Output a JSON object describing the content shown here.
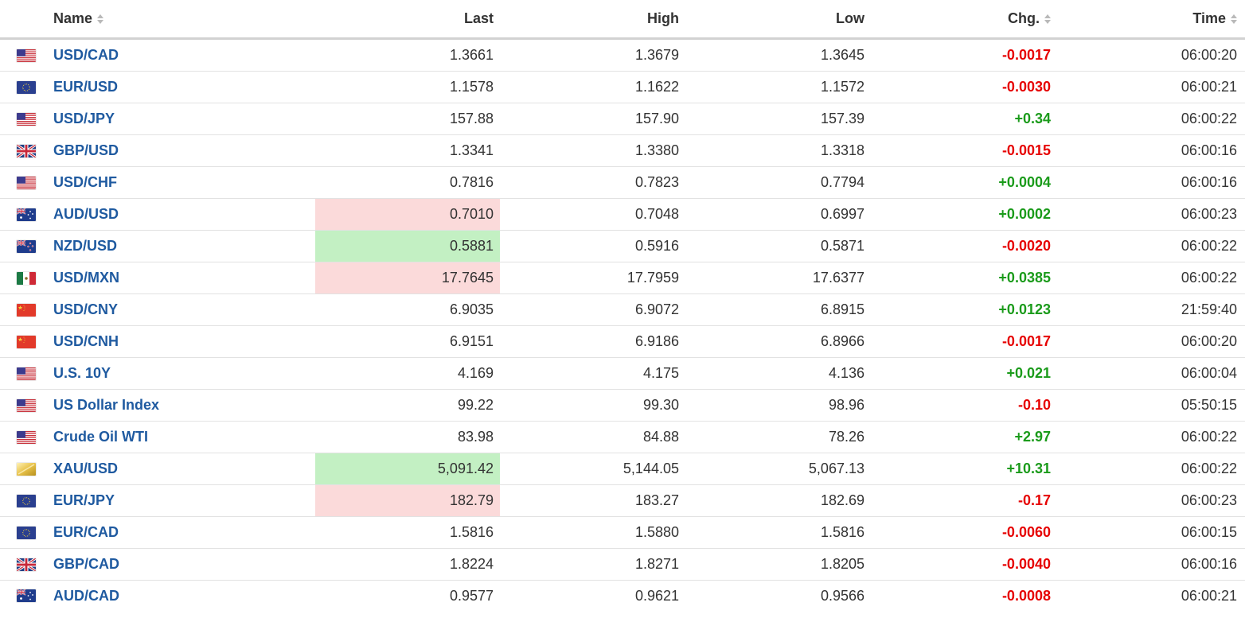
{
  "header": {
    "name": "Name",
    "last": "Last",
    "high": "High",
    "low": "Low",
    "chg": "Chg.",
    "time": "Time"
  },
  "colors": {
    "link": "#1f5aa0",
    "positive": "#1b9b1b",
    "negative": "#e60000",
    "flash_up": "#c3f0c3",
    "flash_down": "#fbdada"
  },
  "rows": [
    {
      "flag": "us-flag-icon",
      "name": "USD/CAD",
      "last": "1.3661",
      "high": "1.3679",
      "low": "1.3645",
      "chg": "-0.0017",
      "dir": "neg",
      "time": "06:00:20",
      "hl": ""
    },
    {
      "flag": "eu-flag-icon",
      "name": "EUR/USD",
      "last": "1.1578",
      "high": "1.1622",
      "low": "1.1572",
      "chg": "-0.0030",
      "dir": "neg",
      "time": "06:00:21",
      "hl": ""
    },
    {
      "flag": "us-flag-icon",
      "name": "USD/JPY",
      "last": "157.88",
      "high": "157.90",
      "low": "157.39",
      "chg": "+0.34",
      "dir": "pos",
      "time": "06:00:22",
      "hl": ""
    },
    {
      "flag": "uk-flag-icon",
      "name": "GBP/USD",
      "last": "1.3341",
      "high": "1.3380",
      "low": "1.3318",
      "chg": "-0.0015",
      "dir": "neg",
      "time": "06:00:16",
      "hl": ""
    },
    {
      "flag": "us-flag-icon",
      "name": "USD/CHF",
      "last": "0.7816",
      "high": "0.7823",
      "low": "0.7794",
      "chg": "+0.0004",
      "dir": "pos",
      "time": "06:00:16",
      "hl": ""
    },
    {
      "flag": "au-flag-icon",
      "name": "AUD/USD",
      "last": "0.7010",
      "high": "0.7048",
      "low": "0.6997",
      "chg": "+0.0002",
      "dir": "pos",
      "time": "06:00:23",
      "hl": "down"
    },
    {
      "flag": "nz-flag-icon",
      "name": "NZD/USD",
      "last": "0.5881",
      "high": "0.5916",
      "low": "0.5871",
      "chg": "-0.0020",
      "dir": "neg",
      "time": "06:00:22",
      "hl": "up"
    },
    {
      "flag": "mx-flag-icon",
      "name": "USD/MXN",
      "last": "17.7645",
      "high": "17.7959",
      "low": "17.6377",
      "chg": "+0.0385",
      "dir": "pos",
      "time": "06:00:22",
      "hl": "down"
    },
    {
      "flag": "cn-flag-icon",
      "name": "USD/CNY",
      "last": "6.9035",
      "high": "6.9072",
      "low": "6.8915",
      "chg": "+0.0123",
      "dir": "pos",
      "time": "21:59:40",
      "hl": ""
    },
    {
      "flag": "cn-flag-icon",
      "name": "USD/CNH",
      "last": "6.9151",
      "high": "6.9186",
      "low": "6.8966",
      "chg": "-0.0017",
      "dir": "neg",
      "time": "06:00:20",
      "hl": ""
    },
    {
      "flag": "us-flag-icon",
      "name": "U.S. 10Y",
      "last": "4.169",
      "high": "4.175",
      "low": "4.136",
      "chg": "+0.021",
      "dir": "pos",
      "time": "06:00:04",
      "hl": ""
    },
    {
      "flag": "us-flag-icon",
      "name": "US Dollar Index",
      "last": "99.22",
      "high": "99.30",
      "low": "98.96",
      "chg": "-0.10",
      "dir": "neg",
      "time": "05:50:15",
      "hl": ""
    },
    {
      "flag": "us-flag-icon",
      "name": "Crude Oil WTI",
      "last": "83.98",
      "high": "84.88",
      "low": "78.26",
      "chg": "+2.97",
      "dir": "pos",
      "time": "06:00:22",
      "hl": ""
    },
    {
      "flag": "gold-icon",
      "name": "XAU/USD",
      "last": "5,091.42",
      "high": "5,144.05",
      "low": "5,067.13",
      "chg": "+10.31",
      "dir": "pos",
      "time": "06:00:22",
      "hl": "up"
    },
    {
      "flag": "eu-flag-icon",
      "name": "EUR/JPY",
      "last": "182.79",
      "high": "183.27",
      "low": "182.69",
      "chg": "-0.17",
      "dir": "neg",
      "time": "06:00:23",
      "hl": "down"
    },
    {
      "flag": "eu-flag-icon",
      "name": "EUR/CAD",
      "last": "1.5816",
      "high": "1.5880",
      "low": "1.5816",
      "chg": "-0.0060",
      "dir": "neg",
      "time": "06:00:15",
      "hl": ""
    },
    {
      "flag": "uk-flag-icon",
      "name": "GBP/CAD",
      "last": "1.8224",
      "high": "1.8271",
      "low": "1.8205",
      "chg": "-0.0040",
      "dir": "neg",
      "time": "06:00:16",
      "hl": ""
    },
    {
      "flag": "au-flag-icon",
      "name": "AUD/CAD",
      "last": "0.9577",
      "high": "0.9621",
      "low": "0.9566",
      "chg": "-0.0008",
      "dir": "neg",
      "time": "06:00:21",
      "hl": ""
    }
  ]
}
